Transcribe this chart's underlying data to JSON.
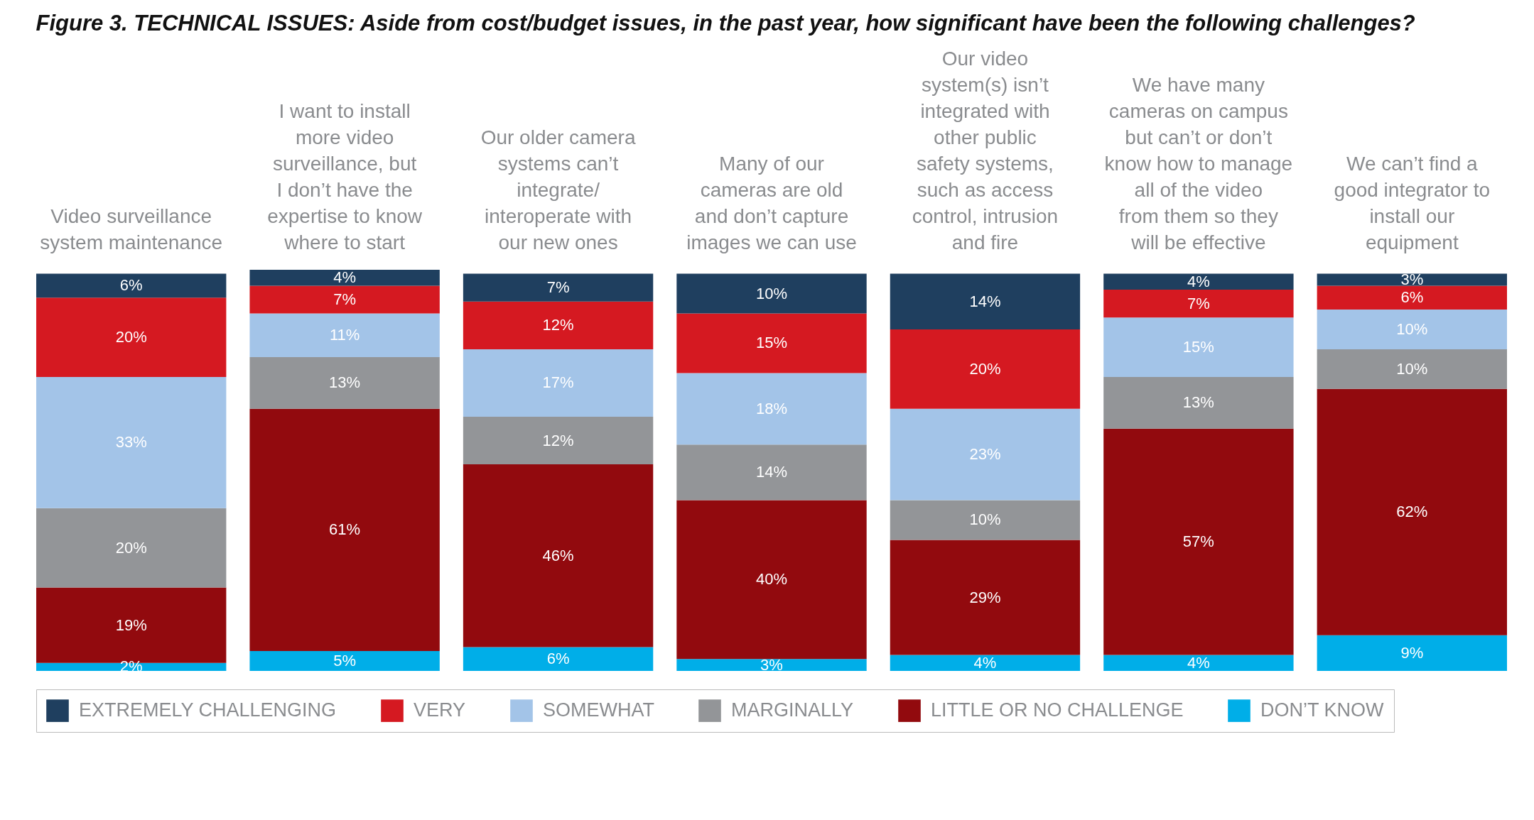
{
  "chart_data": {
    "type": "bar",
    "stacked": true,
    "data_labels": false,
    "legend": "bottom",
    "title": "Figure 3. TECHNICAL ISSUES: Aside from cost/budget issues, in the past year, how significant have been the following challenges?",
    "categories": [
      "Video surveillance system maintenance",
      "I want to install more video surveillance, but I don’t have the expertise to know where to start",
      "Our older camera systems can’t integrate/ interoperate with our new ones",
      "Many of our cameras are old and don’t capture images we can use",
      "Our video system(s) isn’t integrated with other public safety systems, such as access control, intrusion and fire",
      "We have many cameras on campus but can’t or don’t know how to manage all of the video from them so they will be effective",
      "We can’t find a good integrator to install our equipment"
    ],
    "series": [
      {
        "name": "DON’T KNOW",
        "color": "#00aee8",
        "values": [
          2,
          5,
          6,
          3,
          4,
          4,
          9
        ],
        "value_labels": [
          "2%",
          "5%",
          "6%",
          "3%",
          "4%",
          "4%",
          "9%"
        ]
      },
      {
        "name": "LITTLE OR NO CHALLENGE",
        "color": "#920a0e",
        "values": [
          19,
          61,
          46,
          40,
          29,
          57,
          62
        ],
        "value_labels": [
          "19%",
          "61%",
          "46%",
          "40%",
          "29%",
          "57%",
          "62%"
        ]
      },
      {
        "name": "MARGINALLY",
        "color": "#939598",
        "values": [
          20,
          13,
          12,
          14,
          10,
          13,
          10
        ],
        "value_labels": [
          "20%",
          "13%",
          "12%",
          "14%",
          "10%",
          "13%",
          "10%"
        ]
      },
      {
        "name": "SOMEWHAT",
        "color": "#a3c4e8",
        "values": [
          33,
          11,
          17,
          18,
          23,
          15,
          10
        ],
        "value_labels": [
          "33%",
          "11%",
          "17%",
          "18%",
          "23%",
          "15%",
          "10%"
        ]
      },
      {
        "name": "VERY",
        "color": "#d51921",
        "values": [
          20,
          7,
          12,
          15,
          20,
          7,
          6
        ],
        "value_labels": [
          "20%",
          "7%",
          "12%",
          "15%",
          "20%",
          "7%",
          "6%"
        ]
      },
      {
        "name": "EXTREMELY CHALLENGING",
        "color": "#1f3f5f",
        "values": [
          6,
          4,
          7,
          10,
          14,
          4,
          3
        ],
        "value_labels": [
          "6%",
          "4%",
          "7%",
          "10%",
          "14%",
          "4%",
          "3%"
        ]
      }
    ]
  }
}
